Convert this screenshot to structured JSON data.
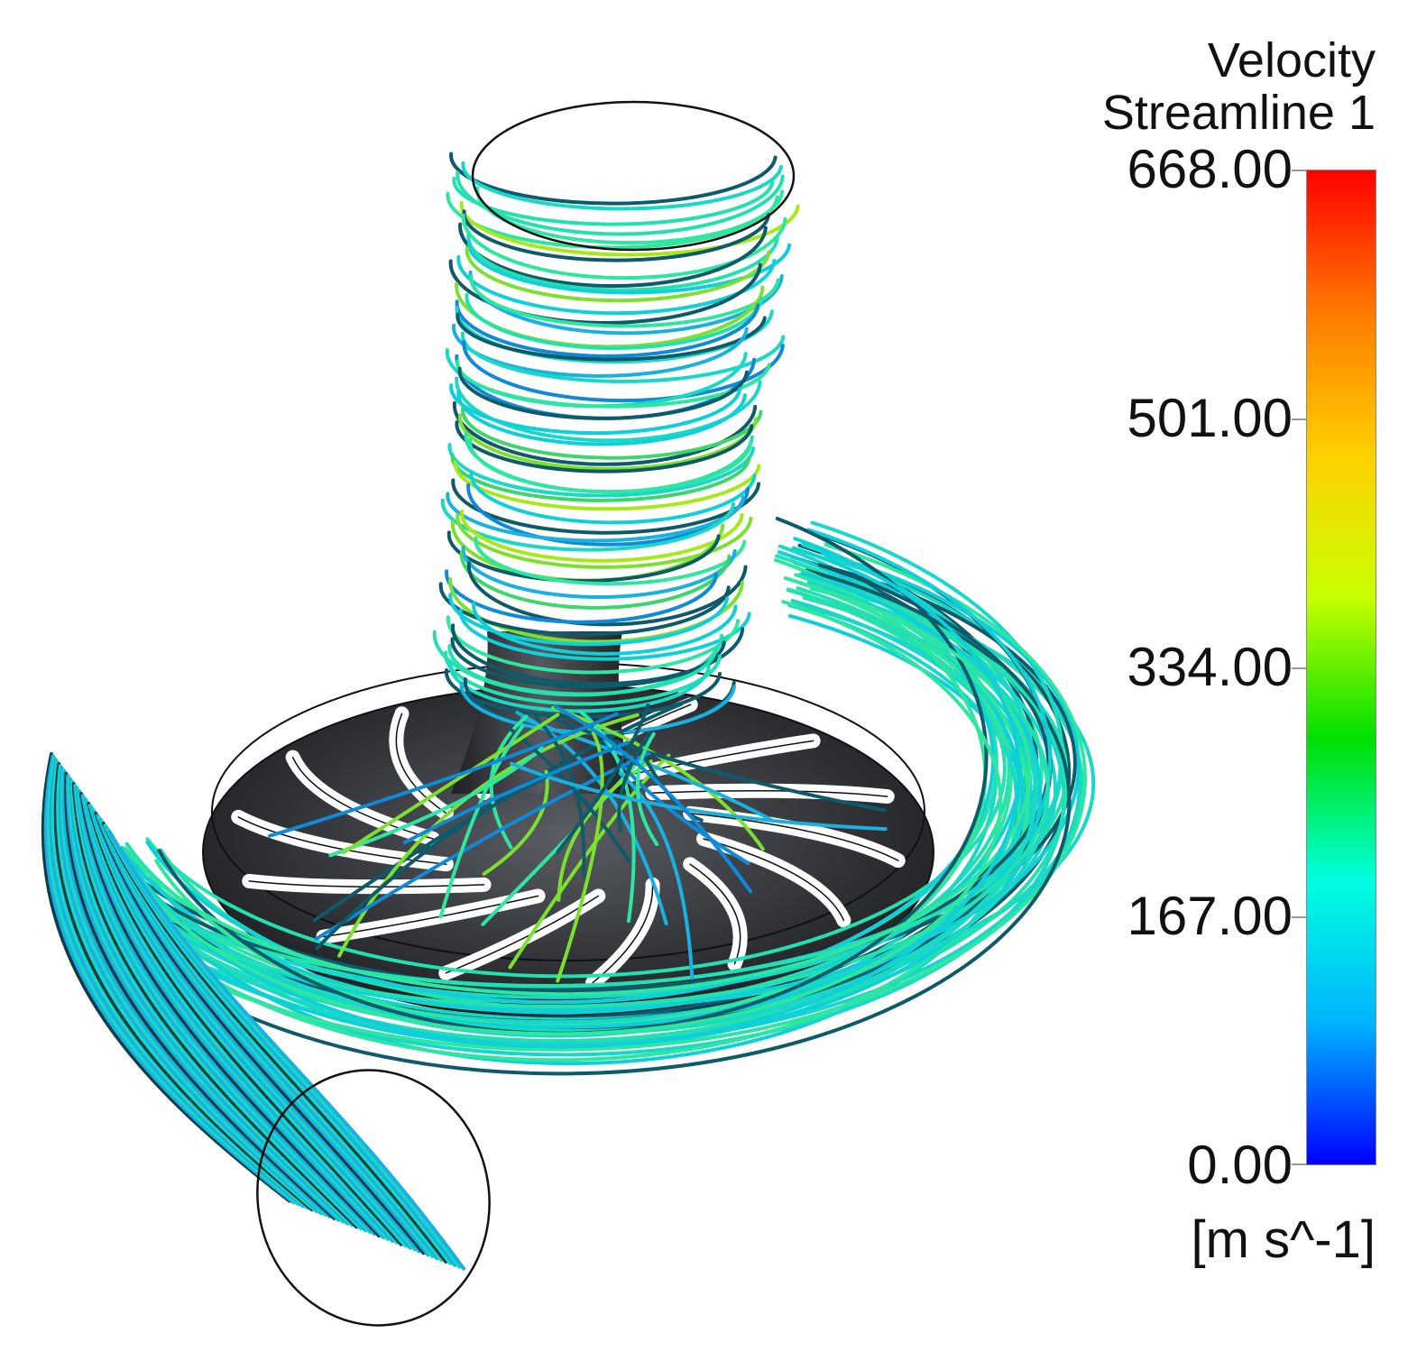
{
  "legend": {
    "title_line1": "Velocity",
    "title_line2": "Streamline 1",
    "units": "[m s^-1]",
    "ticks": [
      "668.00",
      "501.00",
      "334.00",
      "167.00",
      "0.00"
    ],
    "colormap": [
      "#0000ff",
      "#00b4ff",
      "#00ffe0",
      "#00e000",
      "#c8ff00",
      "#ffd000",
      "#ff7a00",
      "#ff0000"
    ]
  },
  "scene": {
    "subject": "impeller-volute-streamlines",
    "streamline_colors": [
      "#19d8c8",
      "#22e0b0",
      "#2ee6a0",
      "#0fd0d8",
      "#1ab0e0",
      "#0f8ad8",
      "#0d5a6a",
      "#3cd66a",
      "#7ce030",
      "#a8e81a"
    ]
  }
}
